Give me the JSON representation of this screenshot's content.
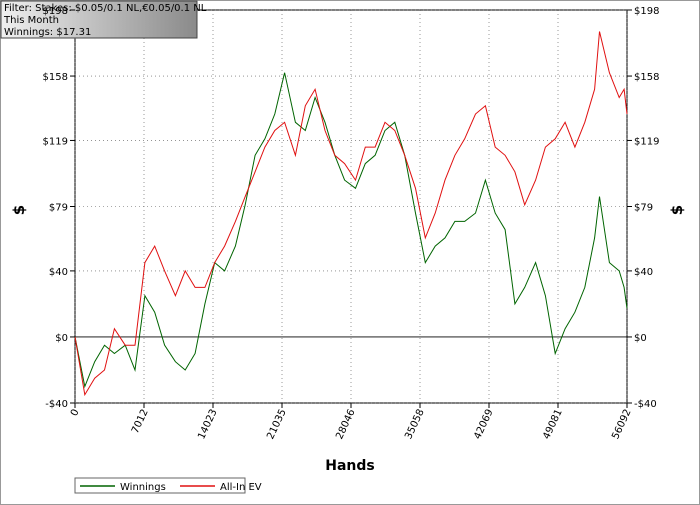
{
  "filter": {
    "lines": [
      "Filter: Stakes: $0.05/0.1 NL,€0.05/0.1 NL",
      "This Month",
      "Winnings: $17.31"
    ]
  },
  "chart_data": {
    "type": "line",
    "xlabel": "Hands",
    "ylabel": "$",
    "x": [
      0,
      1000,
      2000,
      3000,
      4000,
      5100,
      6100,
      7100,
      8100,
      9100,
      10200,
      11200,
      12200,
      13200,
      14200,
      15200,
      16300,
      17300,
      18300,
      19300,
      20300,
      21300,
      22400,
      23400,
      24400,
      25400,
      26400,
      27400,
      28500,
      29500,
      30500,
      31500,
      32500,
      33500,
      34600,
      35600,
      36600,
      37600,
      38600,
      39600,
      40700,
      41700,
      42700,
      43700,
      44700,
      45700,
      46800,
      47800,
      48800,
      49800,
      50800,
      51800,
      52800,
      53300,
      54300,
      55300,
      55800,
      56092
    ],
    "series": [
      {
        "name": "Winnings",
        "color": "#006400",
        "values": [
          0,
          -30,
          -15,
          -5,
          -10,
          -5,
          -20,
          25,
          15,
          -5,
          -15,
          -20,
          -10,
          20,
          45,
          40,
          55,
          80,
          110,
          120,
          135,
          160,
          130,
          125,
          145,
          130,
          110,
          95,
          90,
          105,
          110,
          125,
          130,
          110,
          75,
          45,
          55,
          60,
          70,
          70,
          75,
          95,
          75,
          65,
          20,
          30,
          45,
          25,
          -10,
          5,
          15,
          30,
          60,
          85,
          45,
          40,
          30,
          17.31
        ]
      },
      {
        "name": "All-In EV",
        "color": "#e01010",
        "values": [
          0,
          -35,
          -25,
          -20,
          5,
          -5,
          -5,
          45,
          55,
          40,
          25,
          40,
          30,
          30,
          45,
          55,
          70,
          85,
          100,
          115,
          125,
          130,
          110,
          140,
          150,
          125,
          110,
          105,
          95,
          115,
          115,
          130,
          125,
          110,
          90,
          60,
          75,
          95,
          110,
          120,
          135,
          140,
          115,
          110,
          100,
          80,
          95,
          115,
          120,
          130,
          115,
          130,
          150,
          185,
          160,
          145,
          150,
          135
        ]
      }
    ],
    "xlim": [
      0,
      56092
    ],
    "xticks": [
      0,
      7012,
      14023,
      21035,
      28046,
      35058,
      42069,
      49081,
      56092
    ],
    "ylim": [
      -40,
      198
    ],
    "yticks": [
      {
        "value": -40,
        "label": "-$40"
      },
      {
        "value": 0,
        "label": "$0"
      },
      {
        "value": 40,
        "label": "$40"
      },
      {
        "value": 79,
        "label": "$79"
      },
      {
        "value": 119,
        "label": "$119"
      },
      {
        "value": 158,
        "label": "$158"
      },
      {
        "value": 198,
        "label": "$198"
      }
    ],
    "grid": true
  }
}
